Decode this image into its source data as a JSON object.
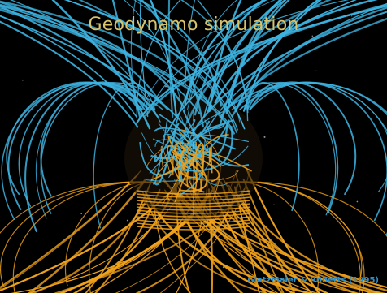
{
  "title": "Geodynamo simulation",
  "credit": "Glatzmaier & Roberts (1995)",
  "colors": {
    "background": "#000000",
    "outward_field_lines": "#3db3e0",
    "inward_field_lines": "#f0a21c",
    "title_text": "#d8c36a",
    "credit_text": "#2e8fc9"
  }
}
